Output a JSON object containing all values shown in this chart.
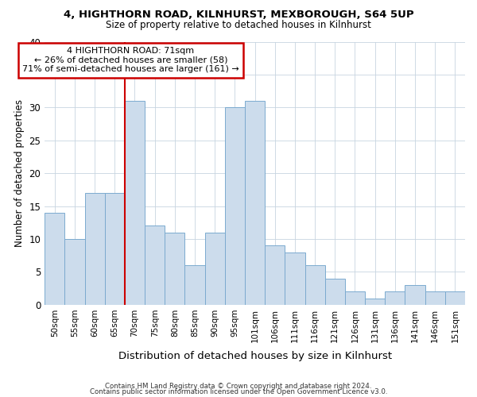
{
  "title1": "4, HIGHTHORN ROAD, KILNHURST, MEXBOROUGH, S64 5UP",
  "title2": "Size of property relative to detached houses in Kilnhurst",
  "xlabel": "Distribution of detached houses by size in Kilnhurst",
  "ylabel": "Number of detached properties",
  "categories": [
    "50sqm",
    "55sqm",
    "60sqm",
    "65sqm",
    "70sqm",
    "75sqm",
    "80sqm",
    "85sqm",
    "90sqm",
    "95sqm",
    "101sqm",
    "106sqm",
    "111sqm",
    "116sqm",
    "121sqm",
    "126sqm",
    "131sqm",
    "136sqm",
    "141sqm",
    "146sqm",
    "151sqm"
  ],
  "values": [
    14,
    10,
    17,
    17,
    31,
    12,
    11,
    6,
    11,
    30,
    31,
    9,
    8,
    6,
    4,
    2,
    1,
    2,
    3,
    2,
    2
  ],
  "bar_color": "#ccdcec",
  "bar_edge_color": "#7baacf",
  "reference_line_index": 4,
  "reference_line_color": "#cc0000",
  "annotation_text": "4 HIGHTHORN ROAD: 71sqm\n← 26% of detached houses are smaller (58)\n71% of semi-detached houses are larger (161) →",
  "annotation_box_edge_color": "#cc0000",
  "ylim": [
    0,
    40
  ],
  "yticks": [
    0,
    5,
    10,
    15,
    20,
    25,
    30,
    35,
    40
  ],
  "footer1": "Contains HM Land Registry data © Crown copyright and database right 2024.",
  "footer2": "Contains public sector information licensed under the Open Government Licence v3.0.",
  "bg_color": "#ffffff",
  "grid_color": "#c8d4e0"
}
